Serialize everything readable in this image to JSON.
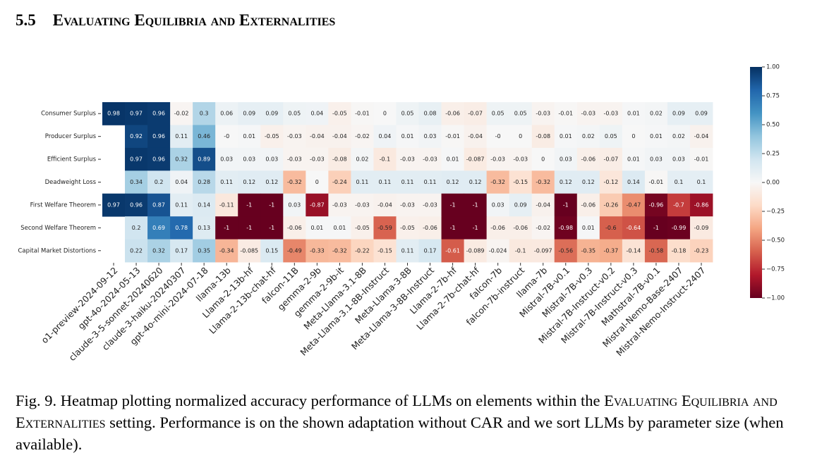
{
  "section": {
    "number": "5.5",
    "title": "Evaluating Equilibria and Externalities"
  },
  "chart_data": {
    "type": "heatmap",
    "columns": [
      "o1-preview-2024-09-12",
      "gpt-4o-2024-05-13",
      "claude-3-5-sonnet-20240620",
      "claude-3-haiku-20240307",
      "gpt-4o-mini-2024-07-18",
      "llama-13b",
      "Llama-2-13b-hf",
      "Llama-2-13b-chat-hf",
      "falcon-11B",
      "gemma-2-9b",
      "gemma-2-9b-it",
      "Meta-Llama-3.1-8B",
      "Meta-Llama-3.1-8B-Instruct",
      "Meta-Llama-3-8B",
      "Meta-Llama-3-8B-Instruct",
      "Llama-2-7b-hf",
      "Llama-2-7b-chat-hf",
      "falcon-7b",
      "falcon-7b-instruct",
      "llama-7b",
      "Mistral-7B-v0.1",
      "Mistral-7B-v0.3",
      "Mistral-7B-Instruct-v0.2",
      "Mistral-7B-Instruct-v0.3",
      "Mathstral-7B-v0.1",
      "Mistral-Nemo-Base-2407",
      "Mistral-Nemo-Instruct-2407"
    ],
    "rows": [
      "Consumer Surplus",
      "Producer Surplus",
      "Efficient Surplus",
      "Deadweight Loss",
      "First Welfare Theorem",
      "Second Welfare Theorem",
      "Capital Market Distortions"
    ],
    "values": [
      [
        0.98,
        0.97,
        0.96,
        -0.02,
        0.3,
        0.06,
        0.09,
        0.09,
        0.05,
        0.04,
        -0.05,
        -0.01,
        0,
        0.05,
        0.08,
        -0.06,
        -0.07,
        0.05,
        0.05,
        -0.03,
        -0.01,
        -0.03,
        -0.03,
        0.01,
        0.02,
        0.09,
        0.09
      ],
      [
        null,
        0.92,
        0.96,
        0.11,
        0.46,
        0,
        0.01,
        -0.05,
        -0.03,
        -0.04,
        -0.04,
        -0.02,
        0.04,
        0.01,
        0.03,
        -0.01,
        -0.04,
        0,
        0,
        -0.08,
        0.01,
        0.02,
        0.05,
        0,
        0.01,
        0.02,
        -0.04
      ],
      [
        null,
        0.97,
        0.96,
        0.32,
        0.89,
        0.03,
        0.03,
        0.03,
        -0.03,
        -0.03,
        -0.08,
        0.02,
        -0.1,
        -0.03,
        -0.03,
        0.01,
        -0.087,
        -0.03,
        -0.03,
        0,
        0.03,
        -0.06,
        -0.07,
        0.01,
        0.03,
        0.03,
        -0.01
      ],
      [
        null,
        0.34,
        0.2,
        0.04,
        0.28,
        0.11,
        0.12,
        0.12,
        -0.32,
        0,
        -0.24,
        0.11,
        0.11,
        0.11,
        0.11,
        0.12,
        0.12,
        -0.32,
        -0.15,
        -0.32,
        0.12,
        0.12,
        -0.12,
        0.14,
        -0.01,
        0.1,
        0.1
      ],
      [
        0.97,
        0.96,
        0.87,
        0.11,
        0.14,
        -0.11,
        -1,
        -1,
        0.03,
        -0.87,
        -0.03,
        -0.03,
        -0.04,
        -0.03,
        -0.03,
        -1,
        -1,
        0.03,
        0.09,
        -0.04,
        -1,
        -0.06,
        -0.26,
        -0.47,
        -0.96,
        -0.7,
        -0.86
      ],
      [
        null,
        0.2,
        0.69,
        0.78,
        0.13,
        -1,
        -1,
        -1,
        -0.06,
        0.01,
        0.01,
        -0.05,
        -0.59,
        -0.05,
        -0.06,
        -1,
        -1,
        -0.06,
        -0.06,
        -0.02,
        -0.98,
        0.01,
        -0.6,
        -0.64,
        -1,
        -0.99,
        -0.09
      ],
      [
        null,
        0.22,
        0.32,
        0.17,
        0.35,
        -0.34,
        -0.085,
        0.15,
        -0.49,
        -0.33,
        -0.32,
        -0.22,
        -0.15,
        0.11,
        0.17,
        -0.61,
        -0.089,
        -0.024,
        -0.1,
        -0.097,
        -0.56,
        -0.35,
        -0.37,
        -0.14,
        -0.58,
        -0.18,
        -0.23
      ]
    ],
    "value_labels": [
      [
        "0.98",
        "0.97",
        "0.96",
        "-0.02",
        "0.3",
        "0.06",
        "0.09",
        "0.09",
        "0.05",
        "0.04",
        "-0.05",
        "-0.01",
        "0",
        "0.05",
        "0.08",
        "-0.06",
        "-0.07",
        "0.05",
        "0.05",
        "-0.03",
        "-0.01",
        "-0.03",
        "-0.03",
        "0.01",
        "0.02",
        "0.09",
        "0.09"
      ],
      [
        null,
        "0.92",
        "0.96",
        "0.11",
        "0.46",
        "-0",
        "0.01",
        "-0.05",
        "-0.03",
        "-0.04",
        "-0.04",
        "-0.02",
        "0.04",
        "0.01",
        "0.03",
        "-0.01",
        "-0.04",
        "-0",
        "0",
        "-0.08",
        "0.01",
        "0.02",
        "0.05",
        "0",
        "0.01",
        "0.02",
        "-0.04"
      ],
      [
        null,
        "0.97",
        "0.96",
        "0.32",
        "0.89",
        "0.03",
        "0.03",
        "0.03",
        "-0.03",
        "-0.03",
        "-0.08",
        "0.02",
        "-0.1",
        "-0.03",
        "-0.03",
        "0.01",
        "-0.087",
        "-0.03",
        "-0.03",
        "0",
        "0.03",
        "-0.06",
        "-0.07",
        "0.01",
        "0.03",
        "0.03",
        "-0.01"
      ],
      [
        null,
        "0.34",
        "0.2",
        "0.04",
        "0.28",
        "0.11",
        "0.12",
        "0.12",
        "-0.32",
        "0",
        "-0.24",
        "0.11",
        "0.11",
        "0.11",
        "0.11",
        "0.12",
        "0.12",
        "-0.32",
        "-0.15",
        "-0.32",
        "0.12",
        "0.12",
        "-0.12",
        "0.14",
        "-0.01",
        "0.1",
        "0.1"
      ],
      [
        "0.97",
        "0.96",
        "0.87",
        "0.11",
        "0.14",
        "-0.11",
        "-1",
        "-1",
        "0.03",
        "-0.87",
        "-0.03",
        "-0.03",
        "-0.04",
        "-0.03",
        "-0.03",
        "-1",
        "-1",
        "0.03",
        "0.09",
        "-0.04",
        "-1",
        "-0.06",
        "-0.26",
        "-0.47",
        "-0.96",
        "-0.7",
        "-0.86"
      ],
      [
        null,
        "0.2",
        "0.69",
        "0.78",
        "0.13",
        "-1",
        "-1",
        "-1",
        "-0.06",
        "0.01",
        "0.01",
        "-0.05",
        "-0.59",
        "-0.05",
        "-0.06",
        "-1",
        "-1",
        "-0.06",
        "-0.06",
        "-0.02",
        "-0.98",
        "0.01",
        "-0.6",
        "-0.64",
        "-1",
        "-0.99",
        "-0.09"
      ],
      [
        null,
        "0.22",
        "0.32",
        "0.17",
        "0.35",
        "-0.34",
        "-0.085",
        "0.15",
        "-0.49",
        "-0.33",
        "-0.32",
        "-0.22",
        "-0.15",
        "0.11",
        "0.17",
        "-0.61",
        "-0.089",
        "-0.024",
        "-0.1",
        "-0.097",
        "-0.56",
        "-0.35",
        "-0.37",
        "-0.14",
        "-0.58",
        "-0.18",
        "-0.23"
      ]
    ],
    "colormap": [
      "#67001f",
      "#b2182b",
      "#d6604d",
      "#f4a582",
      "#fddbc7",
      "#f7f7f7",
      "#d1e5f0",
      "#92c5de",
      "#4393c3",
      "#2166ac",
      "#053061"
    ],
    "zlim": [
      -1,
      1
    ],
    "zticks": [
      {
        "value": 1,
        "label": "1.00"
      },
      {
        "value": 0.75,
        "label": "0.75"
      },
      {
        "value": 0.5,
        "label": "0.50"
      },
      {
        "value": 0.25,
        "label": "0.25"
      },
      {
        "value": 0,
        "label": "0.00"
      },
      {
        "value": -0.25,
        "label": "−0.25"
      },
      {
        "value": -0.5,
        "label": "−0.50"
      },
      {
        "value": -0.75,
        "label": "−0.75"
      },
      {
        "value": -1,
        "label": "−1.00"
      }
    ]
  },
  "caption": [
    "Fig. 9.  Heatmap plotting normalized accuracy performance of LLMs on elements within the ",
    "Evaluating Equilibria and Externalities",
    " setting. Performance is on the shown adaptation without CAR and we sort LLMs by parameter size (when available)."
  ]
}
